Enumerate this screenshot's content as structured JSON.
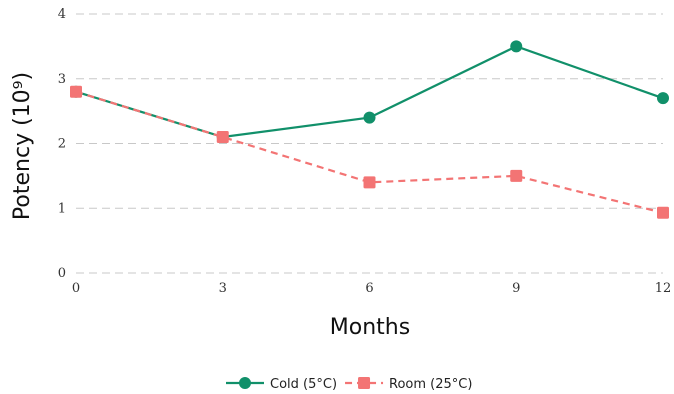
{
  "chart_data": {
    "type": "line",
    "title": "",
    "xlabel": "Months",
    "ylabel": "Potency (10⁹)",
    "x": [
      0,
      3,
      6,
      9,
      12
    ],
    "xticks": [
      "0",
      "3",
      "6",
      "9",
      "12"
    ],
    "yticks": [
      "0",
      "1",
      "2",
      "3",
      "4"
    ],
    "xlim": [
      0,
      12
    ],
    "ylim": [
      0,
      4
    ],
    "grid": "horizontal dashed",
    "legend_position": "bottom-center",
    "series": [
      {
        "name": "Cold (5°C)",
        "values": [
          2.8,
          2.1,
          2.4,
          3.5,
          2.7
        ],
        "color": "#11906a",
        "marker": "circle",
        "linestyle": "solid"
      },
      {
        "name": "Room (25°C)",
        "values": [
          2.8,
          2.1,
          1.4,
          1.5,
          0.93
        ],
        "color": "#f37474",
        "marker": "square",
        "linestyle": "dashed"
      }
    ]
  }
}
